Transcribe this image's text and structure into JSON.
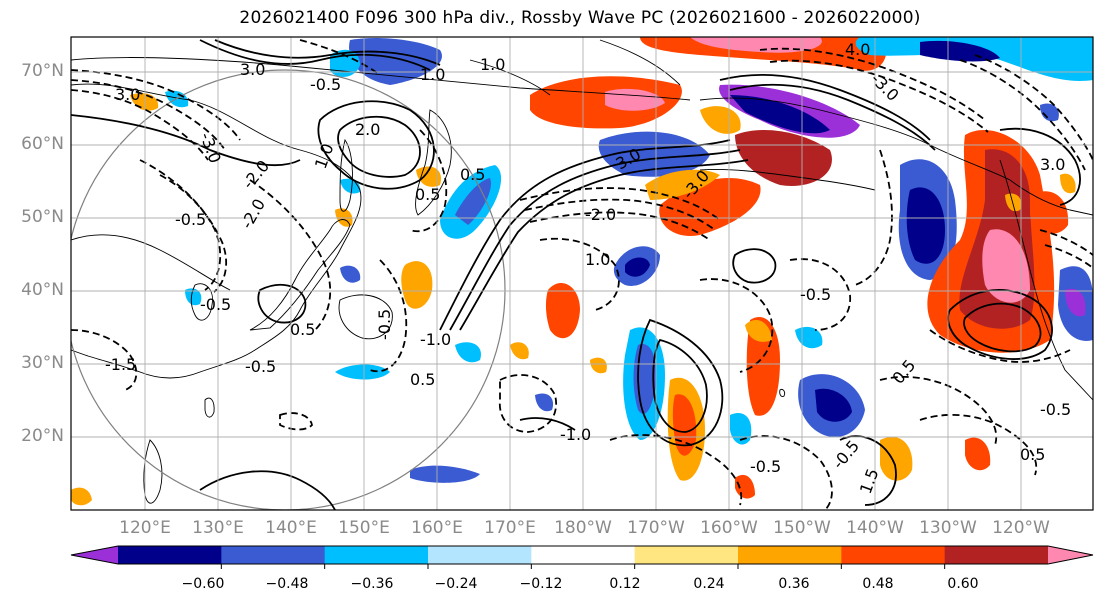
{
  "title": "2026021400 F096 300 hPa div., Rossby Wave PC (2026021600 - 2026022000)",
  "latitude_labels": [
    "70°N",
    "60°N",
    "50°N",
    "40°N",
    "30°N",
    "20°N"
  ],
  "longitude_labels": [
    "120°E",
    "130°E",
    "140°E",
    "150°E",
    "160°E",
    "170°E",
    "180°W",
    "170°W",
    "160°W",
    "150°W",
    "140°W",
    "130°W",
    "120°W"
  ],
  "colorbar": {
    "tick_labels": [
      "−0.60",
      "−0.48",
      "−0.36",
      "−0.24",
      "−0.12",
      "0.12",
      "0.24",
      "0.36",
      "0.48",
      "0.60"
    ],
    "bins": [
      {
        "color": "#9b30d8"
      },
      {
        "color": "#00008b"
      },
      {
        "color": "#3a5bd1"
      },
      {
        "color": "#00bfff"
      },
      {
        "color": "#b3e5ff"
      },
      {
        "color": "#ffffff"
      },
      {
        "color": "#ffe680"
      },
      {
        "color": "#ffa500"
      },
      {
        "color": "#ff4500"
      },
      {
        "color": "#b22222"
      },
      {
        "color": "#ff88b0"
      }
    ]
  },
  "contour_labels": [
    "2.0",
    "1.0",
    "0.5",
    "-0.5",
    "-1.0",
    "-1.5",
    "3.0",
    "-2.0",
    "-3.0",
    "1.5",
    "4.0"
  ],
  "contour_label_instances": [
    "3.0",
    "1.0",
    "-0.5",
    "-3.0",
    "2.0",
    "1.0",
    "0.5",
    "-2.0",
    "0.5",
    "-0.5",
    "0.5",
    "-1.0",
    "-0.5",
    "-0.5",
    "0.5",
    "-1.5",
    "3.0",
    "1.0",
    "1.0",
    "-2.0",
    "4.0",
    "-3.0",
    "3.0",
    "-0.5",
    "0.5",
    "-0.5",
    "-0.5",
    "1.5",
    "-0.5",
    "0.5",
    "-1.0",
    "-3.0",
    "-0.5",
    "3.0",
    "-2.0"
  ]
}
